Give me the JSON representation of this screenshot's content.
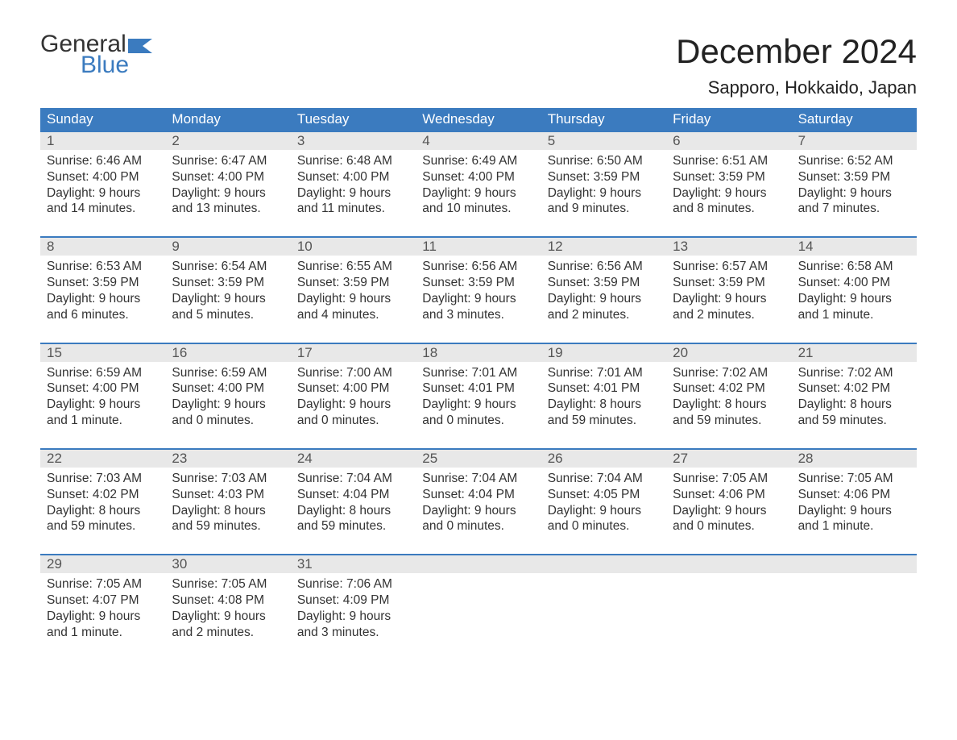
{
  "brand": {
    "word1": "General",
    "word2": "Blue",
    "flag_color": "#3b7bbf",
    "text_dark": "#333333"
  },
  "title": "December 2024",
  "location": "Sapporo, Hokkaido, Japan",
  "colors": {
    "header_bg": "#3b7bbf",
    "header_text": "#ffffff",
    "daynum_bg": "#e8e8e8",
    "daynum_text": "#555555",
    "body_text": "#333333",
    "rule": "#3b7bbf",
    "page_bg": "#ffffff"
  },
  "typography": {
    "title_fontsize": 42,
    "location_fontsize": 22,
    "dow_fontsize": 17,
    "daynum_fontsize": 17,
    "body_fontsize": 15.5,
    "logo_fontsize": 30
  },
  "days_of_week": [
    "Sunday",
    "Monday",
    "Tuesday",
    "Wednesday",
    "Thursday",
    "Friday",
    "Saturday"
  ],
  "weeks": [
    [
      {
        "n": "1",
        "sunrise": "Sunrise: 6:46 AM",
        "sunset": "Sunset: 4:00 PM",
        "d1": "Daylight: 9 hours",
        "d2": "and 14 minutes."
      },
      {
        "n": "2",
        "sunrise": "Sunrise: 6:47 AM",
        "sunset": "Sunset: 4:00 PM",
        "d1": "Daylight: 9 hours",
        "d2": "and 13 minutes."
      },
      {
        "n": "3",
        "sunrise": "Sunrise: 6:48 AM",
        "sunset": "Sunset: 4:00 PM",
        "d1": "Daylight: 9 hours",
        "d2": "and 11 minutes."
      },
      {
        "n": "4",
        "sunrise": "Sunrise: 6:49 AM",
        "sunset": "Sunset: 4:00 PM",
        "d1": "Daylight: 9 hours",
        "d2": "and 10 minutes."
      },
      {
        "n": "5",
        "sunrise": "Sunrise: 6:50 AM",
        "sunset": "Sunset: 3:59 PM",
        "d1": "Daylight: 9 hours",
        "d2": "and 9 minutes."
      },
      {
        "n": "6",
        "sunrise": "Sunrise: 6:51 AM",
        "sunset": "Sunset: 3:59 PM",
        "d1": "Daylight: 9 hours",
        "d2": "and 8 minutes."
      },
      {
        "n": "7",
        "sunrise": "Sunrise: 6:52 AM",
        "sunset": "Sunset: 3:59 PM",
        "d1": "Daylight: 9 hours",
        "d2": "and 7 minutes."
      }
    ],
    [
      {
        "n": "8",
        "sunrise": "Sunrise: 6:53 AM",
        "sunset": "Sunset: 3:59 PM",
        "d1": "Daylight: 9 hours",
        "d2": "and 6 minutes."
      },
      {
        "n": "9",
        "sunrise": "Sunrise: 6:54 AM",
        "sunset": "Sunset: 3:59 PM",
        "d1": "Daylight: 9 hours",
        "d2": "and 5 minutes."
      },
      {
        "n": "10",
        "sunrise": "Sunrise: 6:55 AM",
        "sunset": "Sunset: 3:59 PM",
        "d1": "Daylight: 9 hours",
        "d2": "and 4 minutes."
      },
      {
        "n": "11",
        "sunrise": "Sunrise: 6:56 AM",
        "sunset": "Sunset: 3:59 PM",
        "d1": "Daylight: 9 hours",
        "d2": "and 3 minutes."
      },
      {
        "n": "12",
        "sunrise": "Sunrise: 6:56 AM",
        "sunset": "Sunset: 3:59 PM",
        "d1": "Daylight: 9 hours",
        "d2": "and 2 minutes."
      },
      {
        "n": "13",
        "sunrise": "Sunrise: 6:57 AM",
        "sunset": "Sunset: 3:59 PM",
        "d1": "Daylight: 9 hours",
        "d2": "and 2 minutes."
      },
      {
        "n": "14",
        "sunrise": "Sunrise: 6:58 AM",
        "sunset": "Sunset: 4:00 PM",
        "d1": "Daylight: 9 hours",
        "d2": "and 1 minute."
      }
    ],
    [
      {
        "n": "15",
        "sunrise": "Sunrise: 6:59 AM",
        "sunset": "Sunset: 4:00 PM",
        "d1": "Daylight: 9 hours",
        "d2": "and 1 minute."
      },
      {
        "n": "16",
        "sunrise": "Sunrise: 6:59 AM",
        "sunset": "Sunset: 4:00 PM",
        "d1": "Daylight: 9 hours",
        "d2": "and 0 minutes."
      },
      {
        "n": "17",
        "sunrise": "Sunrise: 7:00 AM",
        "sunset": "Sunset: 4:00 PM",
        "d1": "Daylight: 9 hours",
        "d2": "and 0 minutes."
      },
      {
        "n": "18",
        "sunrise": "Sunrise: 7:01 AM",
        "sunset": "Sunset: 4:01 PM",
        "d1": "Daylight: 9 hours",
        "d2": "and 0 minutes."
      },
      {
        "n": "19",
        "sunrise": "Sunrise: 7:01 AM",
        "sunset": "Sunset: 4:01 PM",
        "d1": "Daylight: 8 hours",
        "d2": "and 59 minutes."
      },
      {
        "n": "20",
        "sunrise": "Sunrise: 7:02 AM",
        "sunset": "Sunset: 4:02 PM",
        "d1": "Daylight: 8 hours",
        "d2": "and 59 minutes."
      },
      {
        "n": "21",
        "sunrise": "Sunrise: 7:02 AM",
        "sunset": "Sunset: 4:02 PM",
        "d1": "Daylight: 8 hours",
        "d2": "and 59 minutes."
      }
    ],
    [
      {
        "n": "22",
        "sunrise": "Sunrise: 7:03 AM",
        "sunset": "Sunset: 4:02 PM",
        "d1": "Daylight: 8 hours",
        "d2": "and 59 minutes."
      },
      {
        "n": "23",
        "sunrise": "Sunrise: 7:03 AM",
        "sunset": "Sunset: 4:03 PM",
        "d1": "Daylight: 8 hours",
        "d2": "and 59 minutes."
      },
      {
        "n": "24",
        "sunrise": "Sunrise: 7:04 AM",
        "sunset": "Sunset: 4:04 PM",
        "d1": "Daylight: 8 hours",
        "d2": "and 59 minutes."
      },
      {
        "n": "25",
        "sunrise": "Sunrise: 7:04 AM",
        "sunset": "Sunset: 4:04 PM",
        "d1": "Daylight: 9 hours",
        "d2": "and 0 minutes."
      },
      {
        "n": "26",
        "sunrise": "Sunrise: 7:04 AM",
        "sunset": "Sunset: 4:05 PM",
        "d1": "Daylight: 9 hours",
        "d2": "and 0 minutes."
      },
      {
        "n": "27",
        "sunrise": "Sunrise: 7:05 AM",
        "sunset": "Sunset: 4:06 PM",
        "d1": "Daylight: 9 hours",
        "d2": "and 0 minutes."
      },
      {
        "n": "28",
        "sunrise": "Sunrise: 7:05 AM",
        "sunset": "Sunset: 4:06 PM",
        "d1": "Daylight: 9 hours",
        "d2": "and 1 minute."
      }
    ],
    [
      {
        "n": "29",
        "sunrise": "Sunrise: 7:05 AM",
        "sunset": "Sunset: 4:07 PM",
        "d1": "Daylight: 9 hours",
        "d2": "and 1 minute."
      },
      {
        "n": "30",
        "sunrise": "Sunrise: 7:05 AM",
        "sunset": "Sunset: 4:08 PM",
        "d1": "Daylight: 9 hours",
        "d2": "and 2 minutes."
      },
      {
        "n": "31",
        "sunrise": "Sunrise: 7:06 AM",
        "sunset": "Sunset: 4:09 PM",
        "d1": "Daylight: 9 hours",
        "d2": "and 3 minutes."
      },
      null,
      null,
      null,
      null
    ]
  ]
}
